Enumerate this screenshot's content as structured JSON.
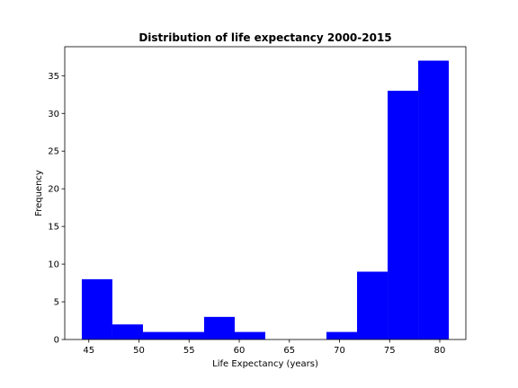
{
  "chart_data": {
    "type": "bar",
    "subtype": "histogram",
    "title": "Distribution of life expectancy 2000-2015",
    "xlabel": "Life Expectancy (years)",
    "ylabel": "Frequency",
    "bin_edges": [
      44.3,
      47.35,
      50.4,
      53.45,
      56.5,
      59.55,
      62.6,
      65.65,
      68.7,
      71.75,
      74.8,
      77.85,
      80.9
    ],
    "values": [
      8,
      2,
      1,
      1,
      3,
      1,
      0,
      0,
      1,
      9,
      33,
      37
    ],
    "xlim": [
      42.6,
      82.6
    ],
    "ylim": [
      0,
      38.85
    ],
    "xticks": [
      45,
      50,
      55,
      60,
      65,
      70,
      75,
      80
    ],
    "yticks": [
      0,
      5,
      10,
      15,
      20,
      25,
      30,
      35
    ],
    "bar_color": "#0000ff",
    "grid": false,
    "legend": false
  }
}
